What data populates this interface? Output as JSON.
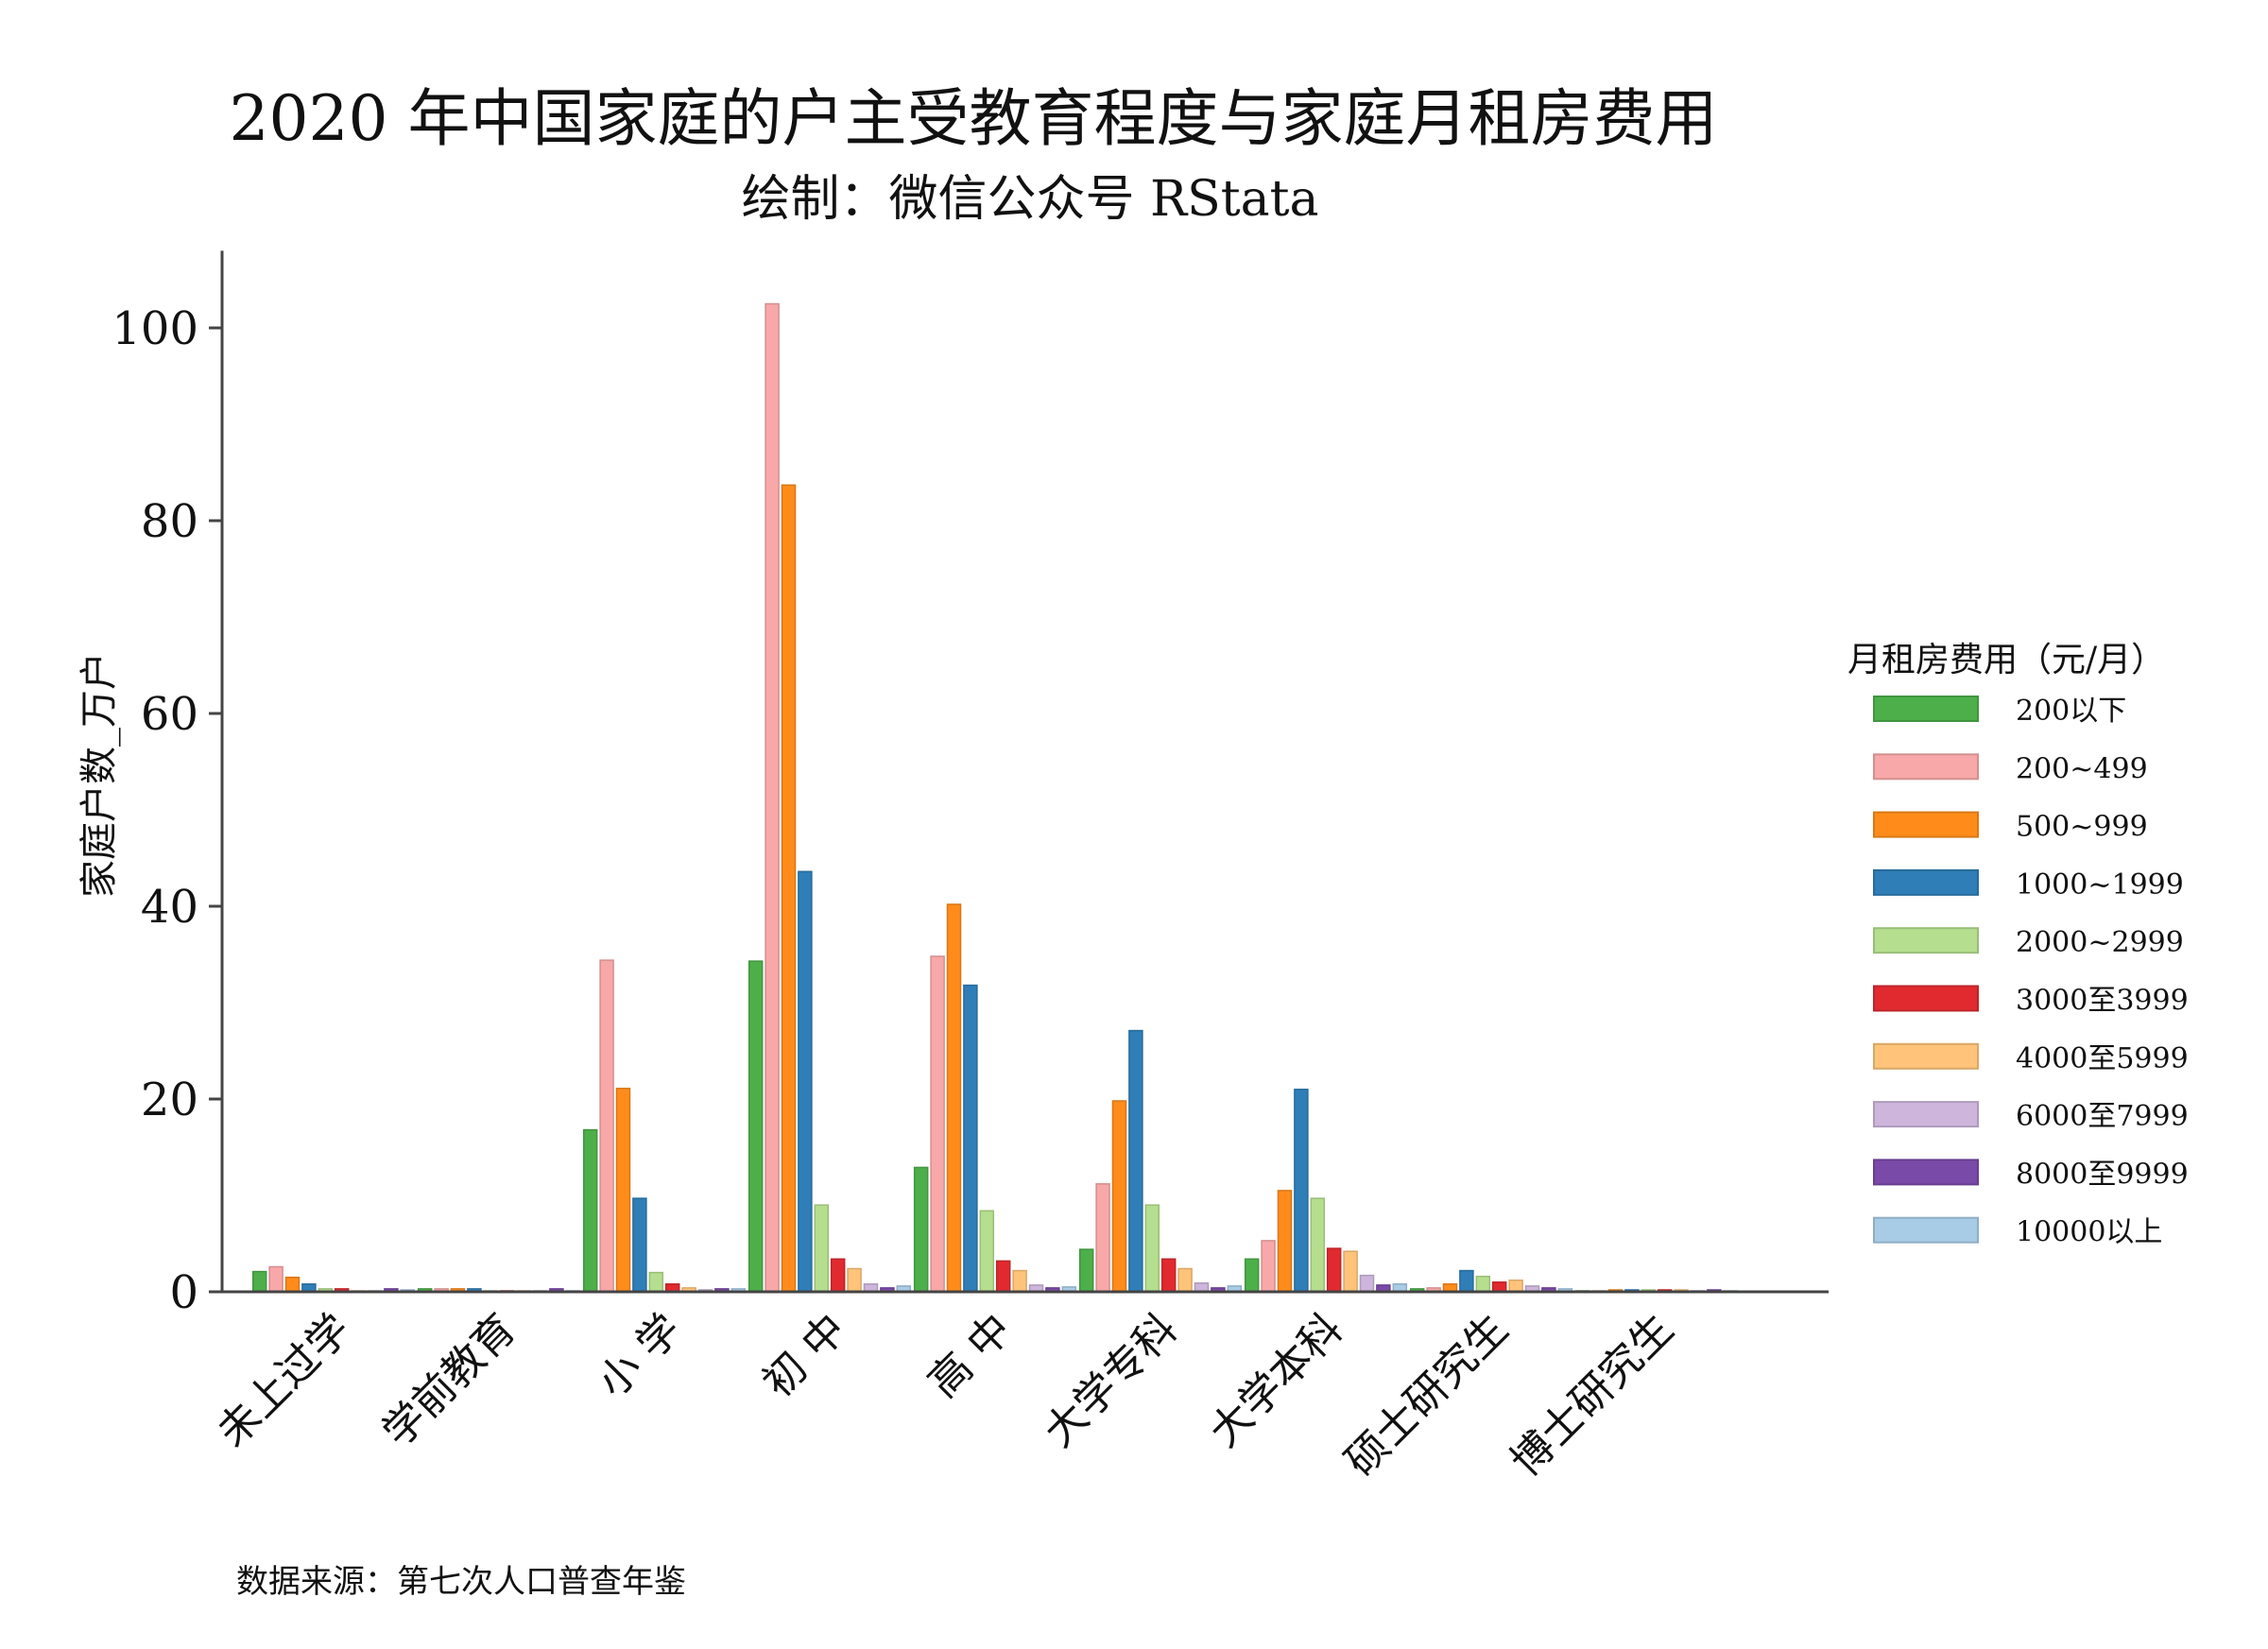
{
  "chart_data": {
    "type": "bar",
    "title": "2020 年中国家庭的户主受教育程度与家庭月租房费用",
    "subtitle": "绘制：微信公众号 RStata",
    "ylabel": "家庭户数_万户",
    "xlabel": "",
    "caption": "数据来源：第七次人口普查年鉴",
    "ylim": [
      0,
      108
    ],
    "yticks": [
      0,
      20,
      40,
      60,
      80,
      100
    ],
    "grid": false,
    "legend_title": "月租房费用（元/月）",
    "legend_position": "right",
    "categories": [
      "未上过学",
      "学前教育",
      "小 学",
      "初 中",
      "高 中",
      "大学专科",
      "大学本科",
      "硕士研究生",
      "博士研究生"
    ],
    "series": [
      {
        "name": "200以下",
        "color": "#4DAF4A",
        "values": [
          2.1,
          0.3,
          16.8,
          34.3,
          12.9,
          4.4,
          3.4,
          0.3,
          0.1
        ]
      },
      {
        "name": "200~499",
        "color": "#F8A8A8",
        "values": [
          2.6,
          0.3,
          34.4,
          102.5,
          34.8,
          11.2,
          5.3,
          0.4,
          0.1
        ]
      },
      {
        "name": "500~999",
        "color": "#FF8C1A",
        "values": [
          1.5,
          0.3,
          21.1,
          83.7,
          40.2,
          19.8,
          10.5,
          0.8,
          0.2
        ]
      },
      {
        "name": "1000~1999",
        "color": "#2F7EB8",
        "values": [
          0.8,
          0.3,
          9.7,
          43.6,
          31.8,
          27.1,
          21.0,
          2.2,
          0.2
        ]
      },
      {
        "name": "2000~2999",
        "color": "#B5DE8E",
        "values": [
          0.3,
          0.1,
          2.0,
          9.0,
          8.4,
          9.0,
          9.7,
          1.6,
          0.2
        ]
      },
      {
        "name": "3000至3999",
        "color": "#E02A2F",
        "values": [
          0.3,
          0.1,
          0.8,
          3.4,
          3.2,
          3.4,
          4.5,
          1.0,
          0.2
        ]
      },
      {
        "name": "4000至5999",
        "color": "#FFC47A",
        "values": [
          0.1,
          0.1,
          0.4,
          2.4,
          2.2,
          2.4,
          4.2,
          1.2,
          0.2
        ]
      },
      {
        "name": "6000至7999",
        "color": "#CDB5DC",
        "values": [
          0.1,
          0.1,
          0.2,
          0.8,
          0.7,
          0.9,
          1.7,
          0.6,
          0.1
        ]
      },
      {
        "name": "8000至9999",
        "color": "#7A4AA8",
        "values": [
          0.3,
          0.3,
          0.3,
          0.4,
          0.4,
          0.4,
          0.7,
          0.4,
          0.2
        ]
      },
      {
        "name": "10000以上",
        "color": "#A9CCE6",
        "values": [
          0.2,
          0.1,
          0.3,
          0.6,
          0.5,
          0.6,
          0.8,
          0.3,
          0.1
        ]
      }
    ]
  }
}
